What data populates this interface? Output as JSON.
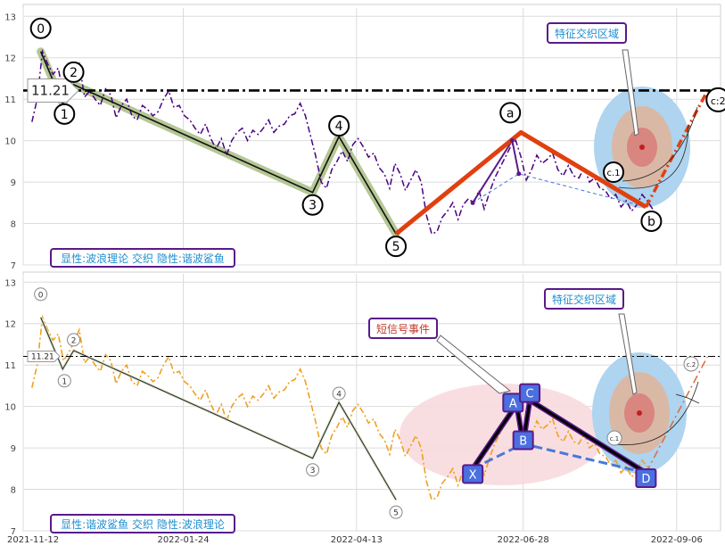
{
  "chart_data": [
    {
      "type": "line",
      "panel": "top",
      "ylim": [
        7,
        13.2
      ],
      "yticks": [
        7,
        8,
        9,
        10,
        11,
        12,
        13
      ],
      "price_series": [
        10.45,
        11.0,
        12.15,
        11.85,
        11.6,
        11.75,
        11.1,
        11.3,
        11.55,
        11.85,
        11.05,
        11.2,
        11.0,
        10.85,
        11.25,
        11.1,
        10.55,
        10.85,
        11.0,
        10.6,
        10.5,
        10.85,
        10.75,
        10.6,
        10.7,
        11.0,
        11.2,
        10.8,
        10.85,
        10.6,
        10.5,
        10.3,
        10.15,
        10.4,
        10.05,
        9.8,
        10.05,
        9.65,
        10.0,
        10.2,
        10.3,
        10.0,
        10.25,
        10.15,
        10.3,
        10.5,
        10.2,
        10.35,
        10.4,
        10.6,
        10.65,
        10.9,
        10.6,
        10.1,
        9.6,
        9.0,
        8.85,
        9.3,
        9.5,
        9.75,
        9.5,
        9.9,
        10.05,
        9.85,
        9.6,
        9.7,
        9.35,
        9.2,
        8.85,
        9.45,
        9.2,
        8.8,
        9.05,
        9.3,
        9.0,
        8.2,
        7.75,
        7.8,
        8.15,
        8.3,
        8.5,
        8.1,
        8.45,
        8.6,
        8.5,
        8.8,
        8.35,
        8.75,
        9.1,
        9.35,
        9.6,
        9.85,
        10.0,
        9.6,
        9.05,
        9.3,
        9.65,
        9.45,
        9.55,
        9.7,
        9.3,
        9.15,
        9.4,
        9.15,
        9.1,
        9.35,
        9.0,
        9.1,
        8.85,
        8.8,
        8.6,
        8.7,
        8.4,
        8.55,
        8.3,
        8.45,
        8.7,
        8.55,
        8.35
      ],
      "reference_line": {
        "value": 11.21,
        "label": "11.21"
      },
      "wave_points": [
        {
          "x": "2021-11-20",
          "y": 12.15,
          "label": "0"
        },
        {
          "x": "2021-11-30",
          "y": 10.9,
          "label": "1"
        },
        {
          "x": "2021-12-05",
          "y": 11.35,
          "label": "2"
        },
        {
          "x": "2022-03-24",
          "y": 8.75,
          "label": "3"
        },
        {
          "x": "2022-04-05",
          "y": 10.1,
          "label": "4"
        },
        {
          "x": "2022-05-01",
          "y": 7.75,
          "label": "5"
        },
        {
          "x": "2022-06-27",
          "y": 10.2,
          "label": "a"
        },
        {
          "x": "2022-08-23",
          "y": 8.4,
          "label": "b"
        },
        {
          "x": "2022-09-20",
          "y": 11.2,
          "label": "c:2"
        }
      ],
      "c1_label": "c.1",
      "harmonic_inner": [
        [
          "2022-06-05",
          8.5
        ],
        [
          "2022-06-23",
          10.0
        ],
        [
          "2022-06-26",
          9.2
        ],
        [
          "2022-08-23",
          8.4
        ]
      ],
      "annotation": "特征交织区域",
      "legend_text": "显性:波浪理论 交织 隐性:谐波鲨鱼"
    },
    {
      "type": "line",
      "panel": "bottom",
      "ylim": [
        7,
        13.2
      ],
      "yticks": [
        7,
        8,
        9,
        10,
        11,
        12,
        13
      ],
      "reference_line": {
        "value": 11.21,
        "label": "11.21"
      },
      "wave_labels": [
        "0",
        "1",
        "2",
        "3",
        "4",
        "5",
        "c.1",
        "c.2"
      ],
      "harmonic_points": [
        {
          "x": "2022-06-05",
          "y": 8.5,
          "label": "X"
        },
        {
          "x": "2022-06-25",
          "y": 10.05,
          "label": "A"
        },
        {
          "x": "2022-06-28",
          "y": 9.1,
          "label": "B"
        },
        {
          "x": "2022-07-01",
          "y": 10.15,
          "label": "C"
        },
        {
          "x": "2022-08-23",
          "y": 8.4,
          "label": "D"
        }
      ],
      "annotation_region": "特征交织区域",
      "annotation_signal": "短信号事件",
      "legend_text": "显性:谐波鲨鱼 交织 隐性:波浪理论"
    }
  ],
  "x_axis": {
    "ticks": [
      "2021-11-12",
      "2022-01-24",
      "2022-04-13",
      "2022-06-28",
      "2022-09-06"
    ],
    "range": [
      "2021-11-12",
      "2022-09-26"
    ]
  },
  "colors": {
    "price_top": "#4b0082",
    "price_bottom": "#f0a020",
    "wave_green": "#b5c795",
    "impulse": "#e04010",
    "harmonic_dash": "#4a78d8",
    "label_box_bg": "#4a6fe0",
    "legend_border": "#5a1a8a",
    "legend_text": "#1f8fd0"
  }
}
